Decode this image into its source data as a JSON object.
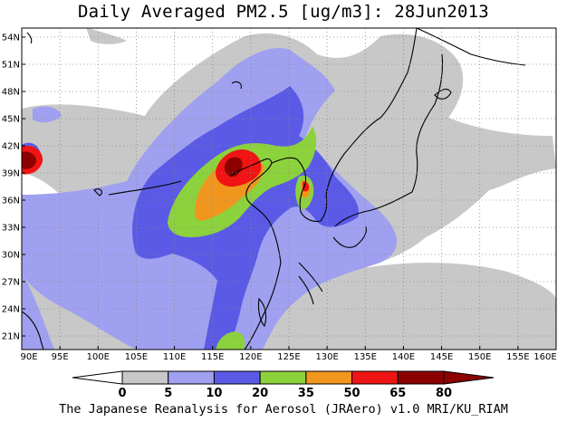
{
  "title": "Daily Averaged PM2.5 [ug/m3]: 28Jun2013",
  "footer": "The Japanese Reanalysis for Aerosol (JRAero) v1.0 MRI/KU_RIAM",
  "map": {
    "lon_range": [
      90,
      160
    ],
    "lat_range": [
      19.5,
      55
    ],
    "lon_ticks": [
      "90E",
      "95E",
      "100E",
      "105E",
      "110E",
      "115E",
      "120E",
      "125E",
      "130E",
      "135E",
      "140E",
      "145E",
      "150E",
      "155E",
      "160E"
    ],
    "lat_ticks": [
      "21N",
      "24N",
      "27N",
      "30N",
      "33N",
      "36N",
      "39N",
      "42N",
      "45N",
      "48N",
      "51N",
      "54N"
    ]
  },
  "colorbar": {
    "levels": [
      "0",
      "5",
      "10",
      "20",
      "35",
      "50",
      "65",
      "80"
    ],
    "colors": [
      "#ffffff",
      "#c8c8c8",
      "#a0a0f0",
      "#5a5ae6",
      "#8cd23c",
      "#f0961e",
      "#f01414",
      "#8c0000"
    ],
    "under_color": "#ffffff",
    "over_color": "#8c0000"
  }
}
